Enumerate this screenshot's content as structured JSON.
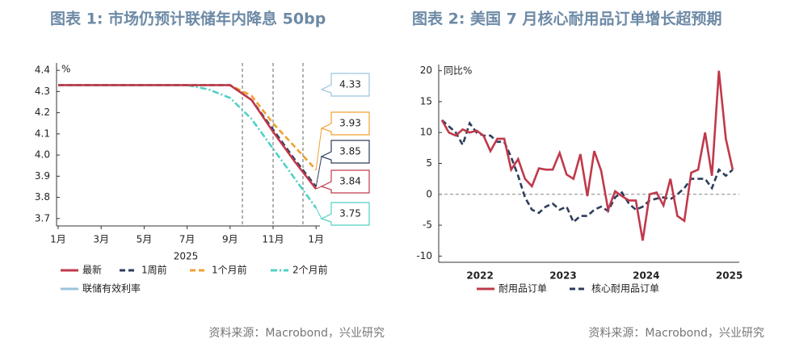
{
  "chart_data": [
    {
      "type": "line",
      "title": "图表 1:  市场仍预计联储年内降息 50bp",
      "ylabel": "%",
      "xlabel": "2025",
      "source": "资料来源：Macrobond，兴业研究",
      "categories": [
        "1月",
        null,
        "3月",
        null,
        "5月",
        null,
        "7月",
        null,
        "9月",
        null,
        "11月",
        null,
        "1月"
      ],
      "ylim": [
        3.665,
        4.435
      ],
      "yticks": [
        3.7,
        3.8,
        3.9,
        {
          "value": 4,
          "label": "4.0"
        },
        4.1,
        4.2,
        4.3,
        4.4
      ],
      "series": [
        {
          "name": "最新",
          "color": "#c0394b",
          "style": "solid",
          "values": [
            4.33,
            4.33,
            4.33,
            4.33,
            4.33,
            4.33,
            4.33,
            4.33,
            4.33,
            4.26,
            4.11,
            3.97,
            3.84
          ]
        },
        {
          "name": "1周前",
          "color": "#2e3d5c",
          "style": "dashed",
          "values": [
            4.33,
            4.33,
            4.33,
            4.33,
            4.33,
            4.33,
            4.33,
            4.33,
            4.33,
            4.26,
            4.12,
            3.98,
            3.85
          ]
        },
        {
          "name": "1个月前",
          "color": "#f0a030",
          "style": "dashed",
          "values": [
            4.33,
            4.33,
            4.33,
            4.33,
            4.33,
            4.33,
            4.33,
            4.33,
            4.33,
            4.28,
            4.15,
            4.04,
            3.93
          ]
        },
        {
          "name": "2个月前",
          "color": "#4fd1c5",
          "style": "dashdot",
          "values": [
            4.33,
            4.33,
            4.33,
            4.33,
            4.33,
            4.33,
            4.33,
            4.31,
            4.27,
            4.17,
            4.03,
            3.89,
            3.75
          ]
        },
        {
          "name": "联储有效利率",
          "color": "#9cc3dc",
          "style": "solid",
          "values": [
            4.33,
            4.33,
            4.33,
            4.33,
            4.33,
            4.33,
            4.33,
            4.33,
            4.33,
            null,
            null,
            null,
            null
          ]
        }
      ]
    },
    {
      "type": "line",
      "title": "图表 2:  美国 7 月核心耐用品订单增长超预期",
      "ylabel": "同比%",
      "source": "资料来源：Macrobond，兴业研究",
      "categories": [
        null,
        null,
        null,
        null,
        null,
        "2022",
        null,
        null,
        null,
        null,
        null,
        null,
        null,
        null,
        null,
        null,
        null,
        "2023",
        null,
        null,
        null,
        null,
        null,
        null,
        null,
        null,
        null,
        null,
        null,
        "2024",
        null,
        null,
        null,
        null,
        null,
        null,
        null,
        null,
        null,
        null,
        null,
        "2025",
        null
      ],
      "ylim": [
        -11,
        21
      ],
      "yticks": [
        -10,
        -5,
        0,
        5,
        10,
        15,
        20
      ],
      "reference_line": 0,
      "series": [
        {
          "name": "耐用品订单",
          "color": "#c0394b",
          "style": "solid",
          "values": [
            12,
            10,
            9.5,
            10.5,
            10,
            10.3,
            9.5,
            7,
            9,
            9,
            4,
            5.7,
            2.5,
            1.3,
            4.2,
            4,
            4,
            6.7,
            3.2,
            2.5,
            6.5,
            -0.3,
            7,
            3.8,
            -2.5,
            0.5,
            -0.3,
            -1,
            -1,
            -7.5,
            0,
            0.3,
            -1.8,
            2.5,
            -3.5,
            -4.3,
            3.5,
            4,
            10,
            3,
            20,
            9,
            4
          ]
        },
        {
          "name": "核心耐用品订单",
          "color": "#2e3d5c",
          "style": "dashed",
          "values": [
            12,
            11,
            10,
            8,
            11.5,
            10,
            9.5,
            9.5,
            8.5,
            8.5,
            6,
            3,
            -0.5,
            -2.5,
            -3,
            -2,
            -1.5,
            -2.5,
            -2,
            -4.5,
            -3.5,
            -3.5,
            -2.5,
            -2,
            -2.7,
            -0.5,
            0.3,
            -1.5,
            -2.5,
            -2,
            -1,
            -0.7,
            -0.5,
            -0.8,
            0,
            1,
            2.5,
            2.5,
            2.5,
            1,
            4,
            3,
            4
          ]
        }
      ]
    }
  ]
}
